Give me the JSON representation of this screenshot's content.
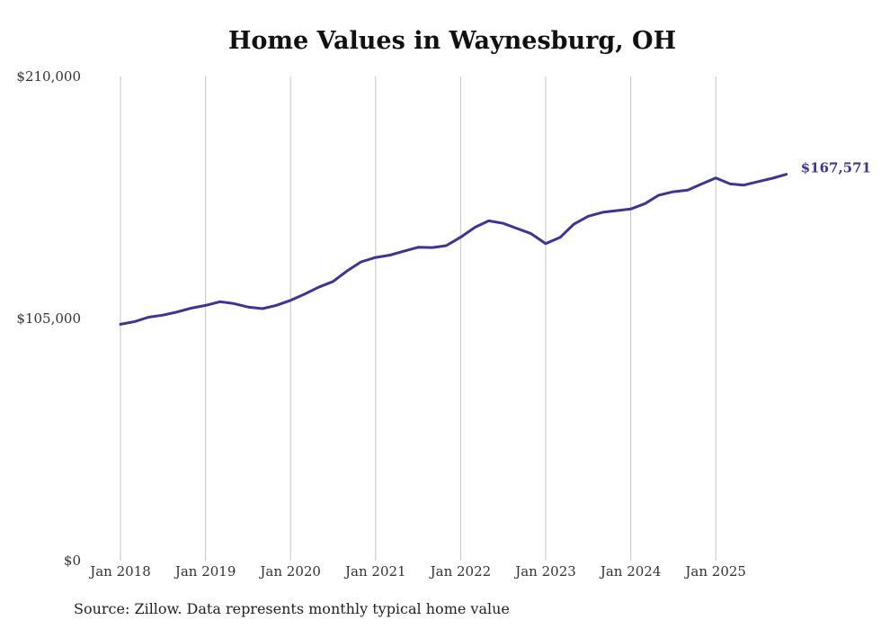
{
  "chart_data": {
    "type": "line",
    "title": "Home Values in Waynesburg, OH",
    "source_note": "Source: Zillow. Data represents monthly typical home value",
    "xlabel": "",
    "ylabel": "",
    "ylim": [
      0,
      210000
    ],
    "yticks": [
      {
        "value": 0,
        "label": "$0"
      },
      {
        "value": 105000,
        "label": "$105,000"
      },
      {
        "value": 210000,
        "label": "$210,000"
      }
    ],
    "xticks": [
      {
        "value": 2018.0,
        "label": "Jan 2018"
      },
      {
        "value": 2019.0,
        "label": "Jan 2019"
      },
      {
        "value": 2020.0,
        "label": "Jan 2020"
      },
      {
        "value": 2021.0,
        "label": "Jan 2021"
      },
      {
        "value": 2022.0,
        "label": "Jan 2022"
      },
      {
        "value": 2023.0,
        "label": "Jan 2023"
      },
      {
        "value": 2024.0,
        "label": "Jan 2024"
      },
      {
        "value": 2025.0,
        "label": "Jan 2025"
      }
    ],
    "xlim": [
      2018.0,
      2025.83
    ],
    "grid": "vertical",
    "line_color": "#3d3591",
    "end_label": "$167,571",
    "series": [
      {
        "x": [
          2018.0,
          2018.17,
          2018.33,
          2018.5,
          2018.67,
          2018.83,
          2019.0,
          2019.17,
          2019.33,
          2019.5,
          2019.67,
          2019.83,
          2020.0,
          2020.17,
          2020.33,
          2020.5,
          2020.67,
          2020.83,
          2021.0,
          2021.17,
          2021.33,
          2021.5,
          2021.67,
          2021.83,
          2022.0,
          2022.17,
          2022.33,
          2022.5,
          2022.67,
          2022.83,
          2023.0,
          2023.17,
          2023.33,
          2023.5,
          2023.67,
          2023.83,
          2024.0,
          2024.17,
          2024.33,
          2024.5,
          2024.67,
          2024.83,
          2025.0,
          2025.17,
          2025.33,
          2025.5,
          2025.67,
          2025.83
        ],
        "y": [
          102500,
          103700,
          105600,
          106500,
          107900,
          109500,
          110700,
          112300,
          111500,
          110000,
          109300,
          110700,
          112900,
          115700,
          118600,
          121100,
          125800,
          129600,
          131500,
          132500,
          134200,
          135900,
          135800,
          136600,
          140300,
          144600,
          147400,
          146300,
          144000,
          141800,
          137500,
          140200,
          145900,
          149400,
          151100,
          151800,
          152500,
          154900,
          158500,
          160000,
          160700,
          163300,
          166000,
          163400,
          162900,
          164400,
          165900,
          167571
        ]
      }
    ]
  }
}
